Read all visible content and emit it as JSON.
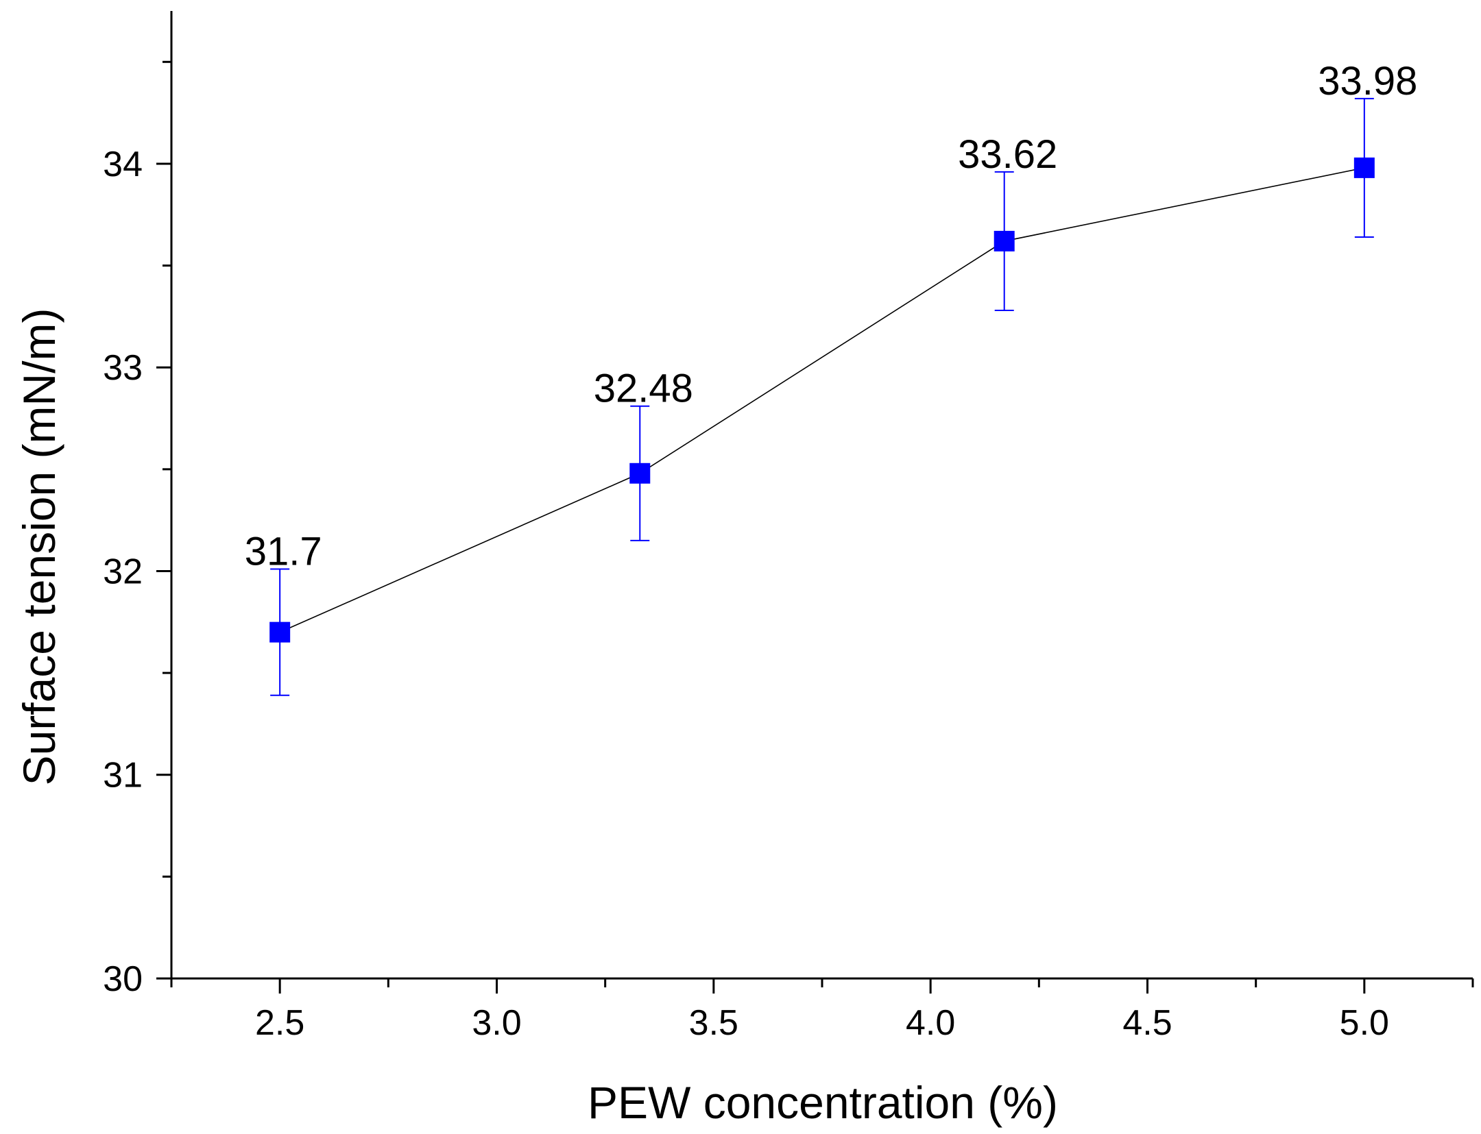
{
  "chart_data": {
    "type": "line",
    "title": "",
    "xlabel": "PEW concentration (%)",
    "ylabel": "Surface tension (mN/m)",
    "xlim": [
      2.25,
      5.25
    ],
    "ylim": [
      30,
      34.75
    ],
    "x_ticks": [
      2.5,
      3.0,
      3.5,
      4.0,
      4.5,
      5.0
    ],
    "x_tick_labels": [
      "2.5",
      "3.0",
      "3.5",
      "4.0",
      "4.5",
      "5.0"
    ],
    "y_ticks": [
      30,
      31,
      32,
      33,
      34
    ],
    "y_tick_labels": [
      "30",
      "31",
      "32",
      "33",
      "34"
    ],
    "grid": false,
    "series": [
      {
        "name": "Surface tension",
        "marker": "square",
        "marker_color": "#0000ff",
        "line_color": "#000000",
        "errorbar_color": "#0000ff",
        "points": [
          {
            "x": 2.5,
            "y": 31.7,
            "err": 0.31,
            "label": "31.7"
          },
          {
            "x": 3.33,
            "y": 32.48,
            "err": 0.33,
            "label": "32.48"
          },
          {
            "x": 4.17,
            "y": 33.62,
            "err": 0.34,
            "label": "33.62"
          },
          {
            "x": 5.0,
            "y": 33.98,
            "err": 0.34,
            "label": "33.98"
          }
        ]
      }
    ]
  }
}
